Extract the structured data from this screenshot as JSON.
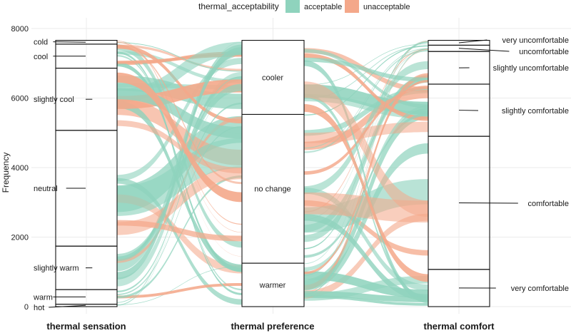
{
  "chart_data": {
    "type": "alluvial",
    "ylabel": "Frequency",
    "ylim": [
      0,
      8000
    ],
    "yticks": [
      0,
      2000,
      4000,
      6000,
      8000
    ],
    "grid": true,
    "legend": {
      "title": "thermal_acceptability",
      "position": "top",
      "entries": [
        {
          "label": "acceptable",
          "color": "#8fd3bd"
        },
        {
          "label": "unacceptable",
          "color": "#f4a88a"
        }
      ]
    },
    "axes": [
      {
        "name": "thermal sensation",
        "strata": [
          {
            "label": "hot",
            "count": 70
          },
          {
            "label": "warm",
            "count": 420
          },
          {
            "label": "slightly warm",
            "count": 1250
          },
          {
            "label": "neutral",
            "count": 3330
          },
          {
            "label": "slightly cool",
            "count": 1790
          },
          {
            "label": "cool",
            "count": 690
          },
          {
            "label": "cold",
            "count": 110
          }
        ]
      },
      {
        "name": "thermal preference",
        "strata": [
          {
            "label": "warmer",
            "count": 1250
          },
          {
            "label": "no change",
            "count": 4280
          },
          {
            "label": "cooler",
            "count": 2130
          }
        ]
      },
      {
        "name": "thermal comfort",
        "strata": [
          {
            "label": "very comfortable",
            "count": 1070
          },
          {
            "label": "comfortable",
            "count": 3830
          },
          {
            "label": "slightly comfortable",
            "count": 1500
          },
          {
            "label": "slightly uncomfortable",
            "count": 940
          },
          {
            "label": "uncomfortable",
            "count": 180
          },
          {
            "label": "very uncomfortable",
            "count": 140
          }
        ]
      }
    ]
  }
}
